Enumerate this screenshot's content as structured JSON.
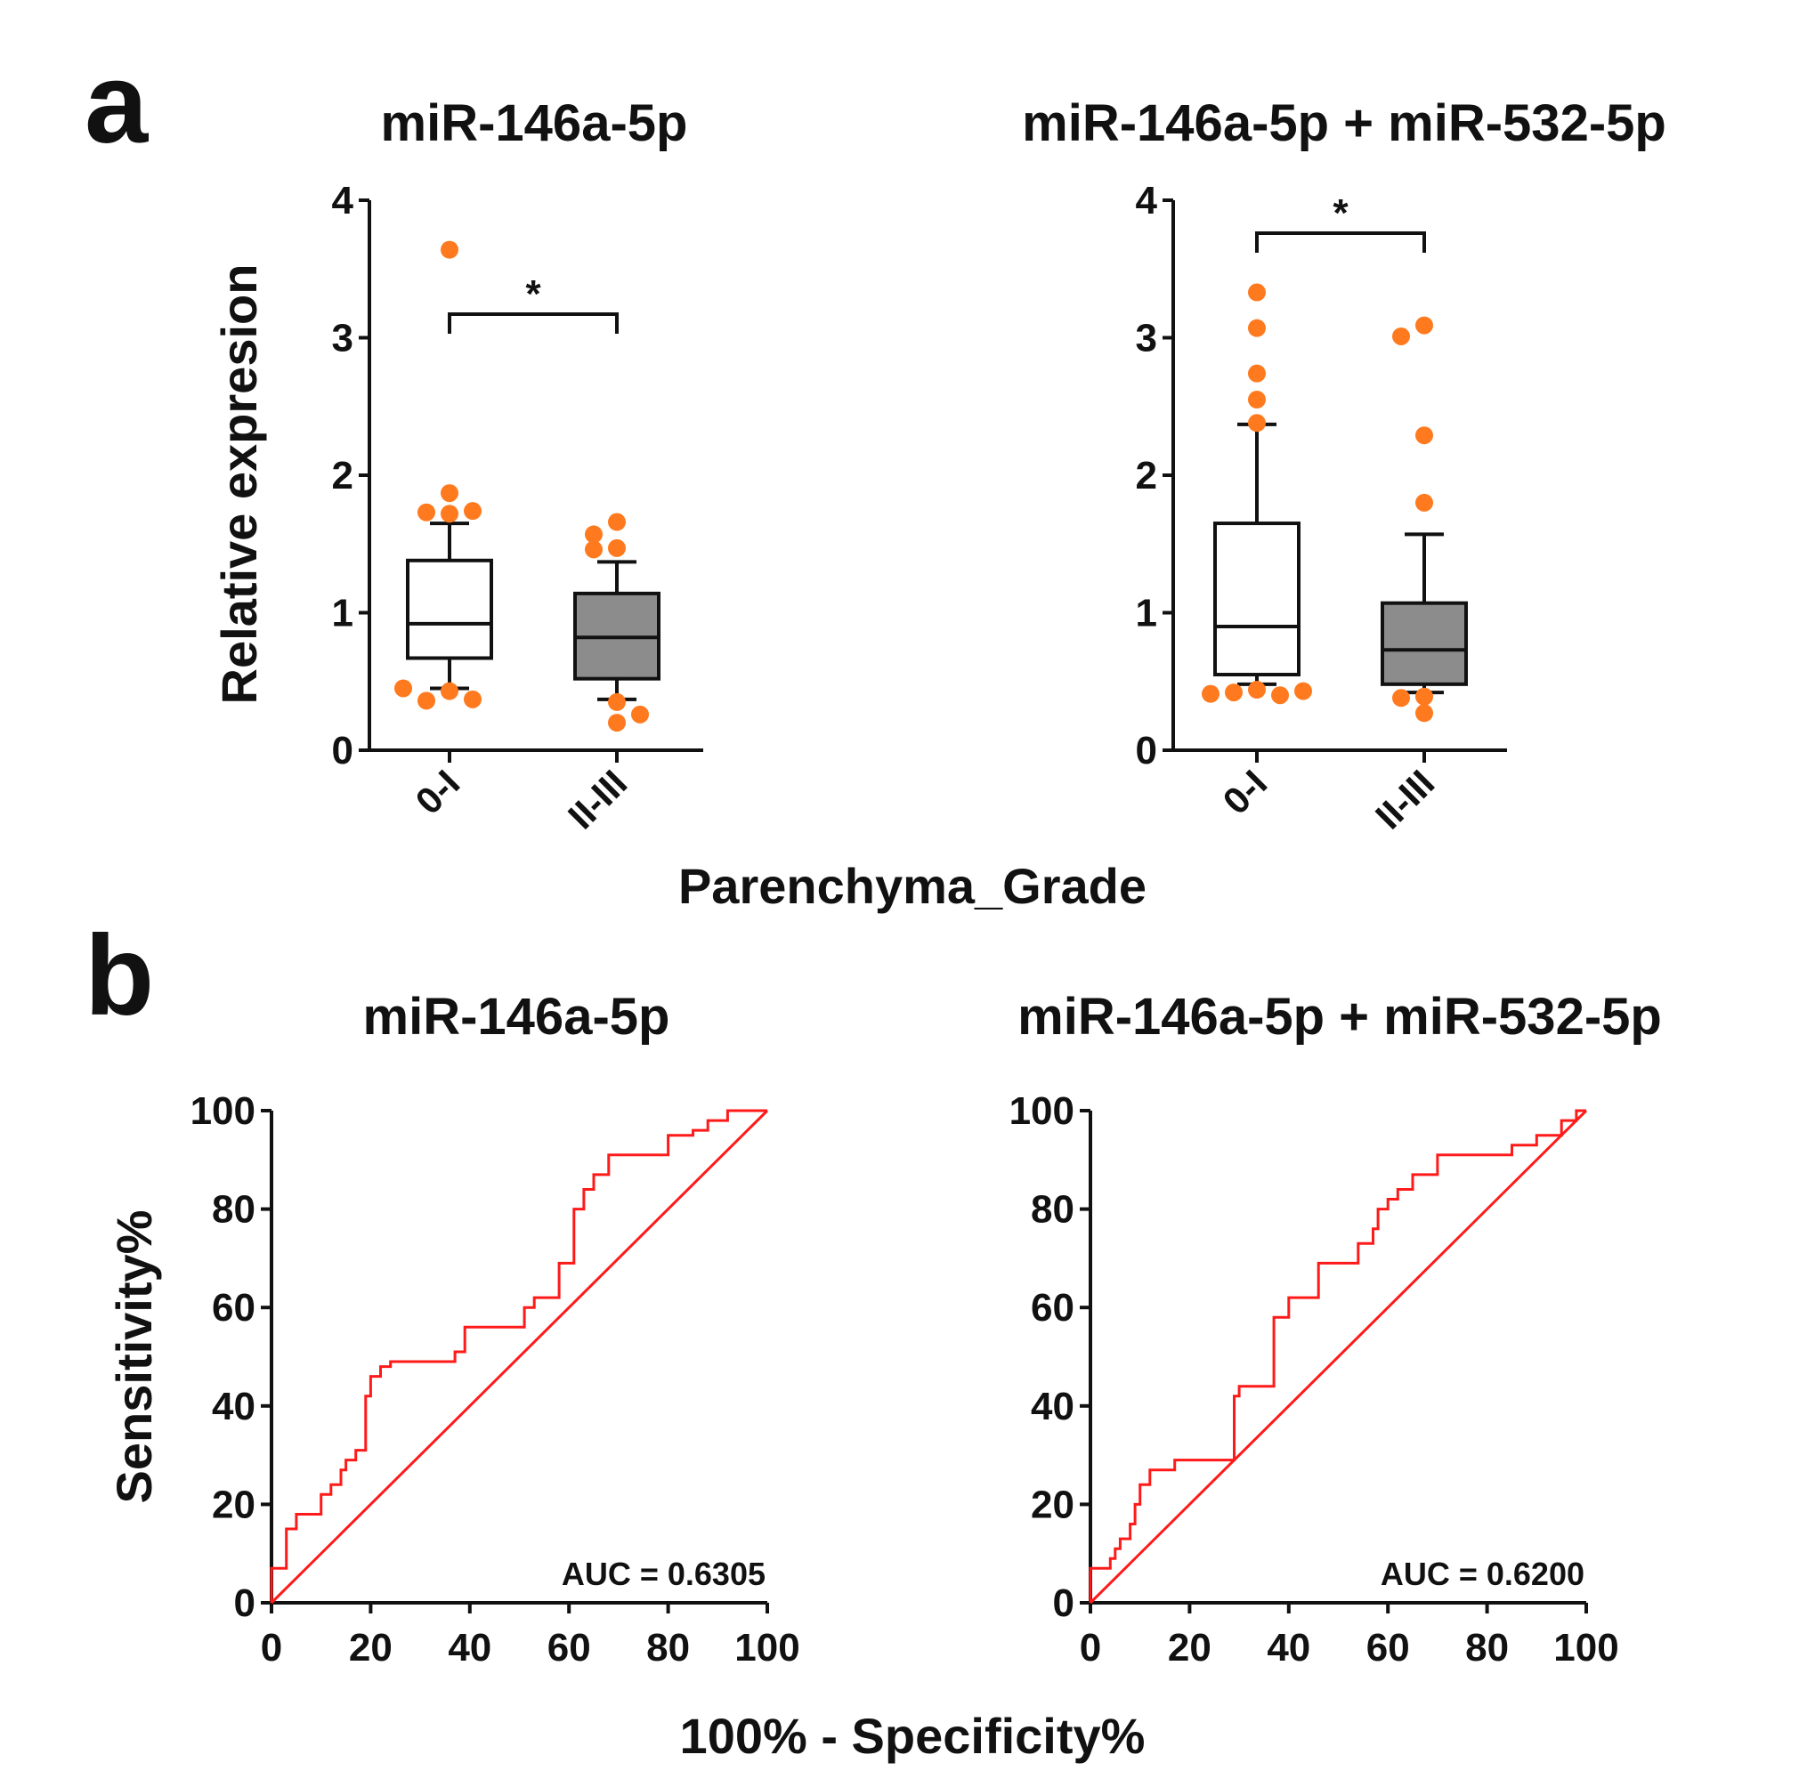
{
  "panel_a_letter": "a",
  "panel_b_letter": "b",
  "chart_data": [
    {
      "type": "box",
      "title": "miR-146a-5p",
      "ylabel": "Relative expresion",
      "xlabel": "Parenchyma_Grade",
      "ylim": [
        0,
        4
      ],
      "yticks": [
        "0",
        "1",
        "2",
        "3",
        "4"
      ],
      "categories": [
        "0-I",
        "II-III"
      ],
      "significance": "*",
      "groups": [
        {
          "name": "0-I",
          "fill": "#ffffff",
          "whisker_low": 0.45,
          "q1": 0.67,
          "median": 0.92,
          "q3": 1.38,
          "whisker_high": 1.65,
          "outliers": [
            3.64,
            1.87,
            1.72,
            1.73,
            1.74,
            0.43,
            0.36,
            0.37,
            0.45
          ]
        },
        {
          "name": "II-III",
          "fill": "#8c8c8c",
          "whisker_low": 0.37,
          "q1": 0.52,
          "median": 0.82,
          "q3": 1.14,
          "whisker_high": 1.37,
          "outliers": [
            1.66,
            1.57,
            1.47,
            1.46,
            0.35,
            0.2,
            0.26
          ]
        }
      ]
    },
    {
      "type": "box",
      "title": "miR-146a-5p + miR-532-5p",
      "ylim": [
        0,
        4
      ],
      "yticks": [
        "0",
        "1",
        "2",
        "3",
        "4"
      ],
      "categories": [
        "0-I",
        "II-III"
      ],
      "significance": "*",
      "groups": [
        {
          "name": "0-I",
          "fill": "#ffffff",
          "whisker_low": 0.48,
          "q1": 0.55,
          "median": 0.9,
          "q3": 1.65,
          "whisker_high": 2.37,
          "outliers": [
            3.33,
            3.07,
            2.74,
            2.55,
            2.38,
            0.44,
            0.42,
            0.4,
            0.41,
            0.43
          ]
        },
        {
          "name": "II-III",
          "fill": "#8c8c8c",
          "whisker_low": 0.42,
          "q1": 0.48,
          "median": 0.73,
          "q3": 1.07,
          "whisker_high": 1.57,
          "outliers": [
            3.09,
            3.01,
            2.29,
            1.8,
            0.39,
            0.27,
            0.38
          ]
        }
      ]
    },
    {
      "type": "line",
      "title": "miR-146a-5p",
      "ylabel": "Sensitivity%",
      "xlabel": "100% - Specificity%",
      "xlim": [
        0,
        100
      ],
      "ylim": [
        0,
        100
      ],
      "xticks": [
        "0",
        "20",
        "40",
        "60",
        "80",
        "100"
      ],
      "yticks": [
        "0",
        "20",
        "40",
        "60",
        "80",
        "100"
      ],
      "annotation": "AUC = 0.6305",
      "x": [
        0,
        0,
        3,
        3,
        5,
        5,
        10,
        10,
        12,
        12,
        14,
        14,
        15,
        15,
        17,
        17,
        19,
        19,
        20,
        20,
        22,
        22,
        24,
        24,
        37,
        37,
        39,
        39,
        51,
        51,
        53,
        53,
        58,
        58,
        61,
        61,
        63,
        63,
        65,
        65,
        68,
        68,
        80,
        80,
        85,
        85,
        88,
        88,
        92,
        92,
        100
      ],
      "y": [
        0,
        7,
        7,
        15,
        15,
        18,
        18,
        22,
        22,
        24,
        24,
        27,
        27,
        29,
        29,
        31,
        31,
        42,
        42,
        46,
        46,
        48,
        48,
        49,
        49,
        51,
        51,
        56,
        56,
        60,
        60,
        62,
        62,
        69,
        69,
        80,
        80,
        84,
        84,
        87,
        87,
        91,
        91,
        95,
        95,
        96,
        96,
        98,
        98,
        100,
        100
      ],
      "diagonal": true
    },
    {
      "type": "line",
      "title": "miR-146a-5p + miR-532-5p",
      "xlim": [
        0,
        100
      ],
      "ylim": [
        0,
        100
      ],
      "xticks": [
        "0",
        "20",
        "40",
        "60",
        "80",
        "100"
      ],
      "yticks": [
        "0",
        "20",
        "40",
        "60",
        "80",
        "100"
      ],
      "annotation": "AUC = 0.6200",
      "x": [
        0,
        0,
        4,
        4,
        5,
        5,
        6,
        6,
        8,
        8,
        9,
        9,
        10,
        10,
        12,
        12,
        14,
        14,
        17,
        17,
        29,
        29,
        30,
        30,
        37,
        37,
        40,
        40,
        46,
        46,
        54,
        54,
        57,
        57,
        58,
        58,
        60,
        60,
        62,
        62,
        65,
        65,
        70,
        70,
        85,
        85,
        90,
        90,
        95,
        95,
        98,
        98,
        100
      ],
      "y": [
        0,
        7,
        7,
        9,
        9,
        11,
        11,
        13,
        13,
        16,
        16,
        20,
        20,
        24,
        24,
        27,
        27,
        27,
        27,
        29,
        29,
        42,
        42,
        44,
        44,
        58,
        58,
        62,
        62,
        69,
        69,
        73,
        73,
        76,
        76,
        80,
        80,
        82,
        82,
        84,
        84,
        87,
        87,
        91,
        91,
        93,
        93,
        95,
        95,
        98,
        98,
        100,
        100
      ],
      "diagonal": true
    }
  ]
}
